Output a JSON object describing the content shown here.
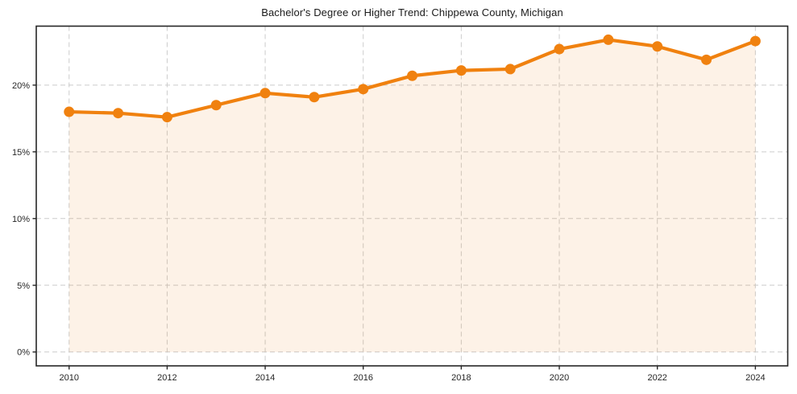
{
  "page": {
    "title": "Bachelor's Degree or Higher Trend: Chippewa County, Michigan"
  },
  "chart_data": {
    "type": "area",
    "title": "Bachelor's Degree or Higher Trend: Chippewa County, Michigan",
    "x": [
      2010,
      2011,
      2012,
      2013,
      2014,
      2015,
      2016,
      2017,
      2018,
      2019,
      2020,
      2021,
      2022,
      2023,
      2024
    ],
    "series": [
      {
        "name": "Bachelor's Degree or Higher (%)",
        "values": [
          18.0,
          17.9,
          17.6,
          18.5,
          19.4,
          19.1,
          19.7,
          20.7,
          21.1,
          21.2,
          22.7,
          23.4,
          22.9,
          21.9,
          23.3
        ]
      }
    ],
    "xlabel": "",
    "ylabel": "",
    "x_tick_values": [
      2010,
      2012,
      2014,
      2016,
      2018,
      2020,
      2022,
      2024
    ],
    "x_tick_labels": [
      "2010",
      "2012",
      "2014",
      "2016",
      "2018",
      "2020",
      "2022",
      "2024"
    ],
    "y_tick_values": [
      0,
      5,
      10,
      15,
      20
    ],
    "y_tick_labels": [
      "0%",
      "5%",
      "10%",
      "15%",
      "20%"
    ],
    "xlim": [
      2009.33,
      2024.66
    ],
    "ylim": [
      -1.04,
      24.42
    ],
    "fill_baseline": 0,
    "grid": true,
    "legend": false,
    "colors": {
      "line": "#f0810f",
      "marker": "#f0810f",
      "fill": "#f0810f",
      "fill_opacity": 0.1,
      "grid": "#cccccc",
      "axis_border": "#262626",
      "tick_text": "#262626",
      "title_text": "#1a1a1a"
    }
  }
}
